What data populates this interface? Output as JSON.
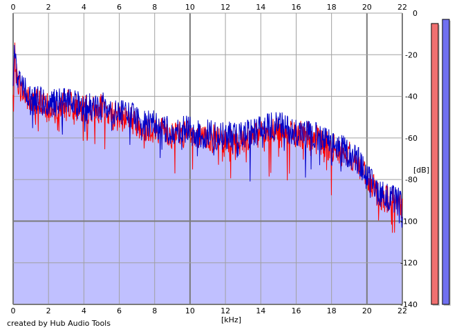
{
  "credit": "created by Hub Audio Tools",
  "chart_data": {
    "type": "line",
    "title": "",
    "xlabel": "[kHz]",
    "ylabel": "[dB]",
    "xlim": [
      0,
      22
    ],
    "ylim": [
      -140,
      0
    ],
    "xticks": [
      0,
      2,
      4,
      6,
      8,
      10,
      12,
      14,
      16,
      18,
      20,
      22
    ],
    "yticks": [
      0,
      -20,
      -40,
      -60,
      -80,
      -100,
      -120,
      -140
    ],
    "grid": true,
    "colors": {
      "left_channel": "#ff0000",
      "right_channel": "#0000c8",
      "fill": "#c0c0ff",
      "grid": "#a0a0a0"
    },
    "series": [
      {
        "x": [
          0,
          0.1,
          0.2,
          0.4,
          0.6,
          0.8,
          1,
          1.5,
          2,
          2.5,
          3,
          3.5,
          4,
          4.5,
          5,
          5.5,
          6,
          6.5,
          7,
          7.5,
          8,
          8.5,
          9,
          9.5,
          10,
          10.5,
          11,
          11.5,
          12,
          12.5,
          13,
          13.5,
          14,
          14.5,
          15,
          15.5,
          16,
          16.5,
          17,
          17.5,
          18,
          18.5,
          19,
          19.5,
          20,
          20.5,
          21,
          21.5,
          22
        ],
        "y": [
          -40,
          -20,
          -30,
          -35,
          -38,
          -40,
          -43,
          -42,
          -45,
          -44,
          -42,
          -44,
          -46,
          -46,
          -45,
          -48,
          -50,
          -49,
          -52,
          -54,
          -55,
          -56,
          -58,
          -57,
          -58,
          -60,
          -59,
          -60,
          -60,
          -61,
          -60,
          -59,
          -58,
          -57,
          -56,
          -57,
          -58,
          -58,
          -59,
          -62,
          -64,
          -66,
          -68,
          -72,
          -80,
          -85,
          -88,
          -90,
          -92
        ]
      },
      {
        "x": [
          0,
          0.1,
          0.2,
          0.4,
          0.6,
          0.8,
          1,
          1.5,
          2,
          2.5,
          3,
          3.5,
          4,
          4.5,
          5,
          5.5,
          6,
          6.5,
          7,
          7.5,
          8,
          8.5,
          9,
          9.5,
          10,
          10.5,
          11,
          11.5,
          12,
          12.5,
          13,
          13.5,
          14,
          14.5,
          15,
          15.5,
          16,
          16.5,
          17,
          17.5,
          18,
          18.5,
          19,
          19.5,
          20,
          20.5,
          21,
          21.5,
          22
        ],
        "y": [
          -38,
          -15,
          -28,
          -33,
          -36,
          -38,
          -42,
          -41,
          -44,
          -42,
          -41,
          -43,
          -45,
          -44,
          -44,
          -46,
          -48,
          -47,
          -50,
          -52,
          -53,
          -54,
          -56,
          -55,
          -56,
          -58,
          -57,
          -58,
          -58,
          -59,
          -58,
          -57,
          -55,
          -54,
          -53,
          -55,
          -56,
          -57,
          -58,
          -60,
          -62,
          -64,
          -67,
          -70,
          -78,
          -84,
          -87,
          -89,
          -91
        ]
      }
    ],
    "level_meters": [
      {
        "channel": "left",
        "value_db": -5,
        "color": "#f07070"
      },
      {
        "channel": "right",
        "value_db": -3,
        "color": "#7070f0"
      }
    ]
  }
}
